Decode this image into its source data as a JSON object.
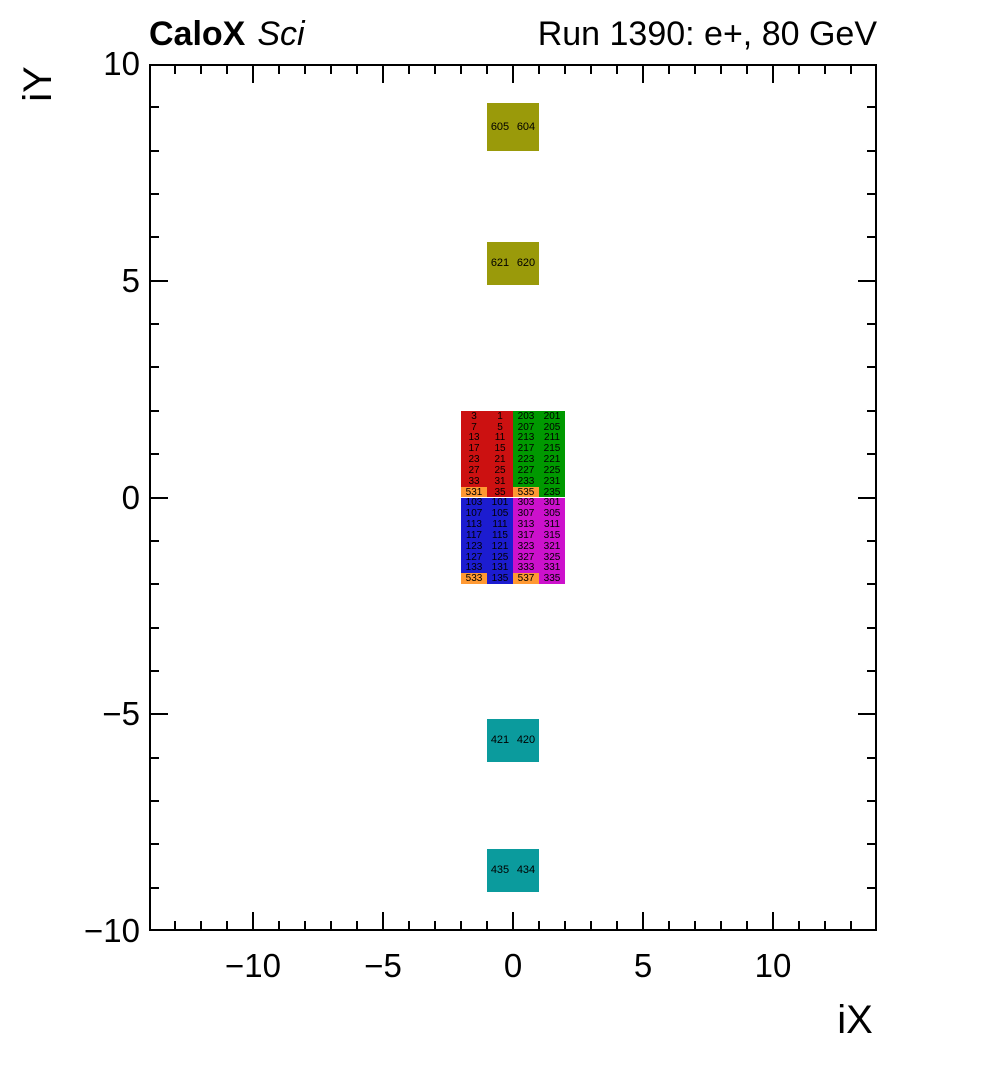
{
  "header": {
    "left_bold": "CaloX",
    "left_italic": "Sci",
    "right": "Run 1390: e+, 80 GeV"
  },
  "chart_data": {
    "type": "heatmap",
    "title": "CaloX Sci — Run 1390: e+, 80 GeV",
    "x_axis": {
      "title": "iX",
      "range": [
        -14,
        14
      ],
      "major_ticks": [
        -10,
        -5,
        0,
        5,
        10
      ],
      "tick_labels": [
        "−10",
        "−5",
        "0",
        "5",
        "10"
      ],
      "minor_step": 1
    },
    "y_axis": {
      "title": "iY",
      "range": [
        -10,
        10
      ],
      "major_ticks": [
        10,
        5,
        0,
        -5,
        -10
      ],
      "tick_labels": [
        "10",
        "5",
        "0",
        "−5",
        "−10"
      ],
      "minor_step": 1
    },
    "colors": {
      "red": "#cc1111",
      "green": "#009900",
      "blue": "#1c1cd0",
      "magenta": "#cc11cc",
      "orange": "#ff9933",
      "olive": "#9a9a0a",
      "teal": "#0b9b9d",
      "text": "#000000",
      "frame": "#000000"
    },
    "blocks": [
      {
        "name": "upper-left-red",
        "color_key": "red",
        "x": [
          -2,
          0
        ],
        "y": [
          0,
          2
        ],
        "row_height": 0.25,
        "columns": [
          [
            "3",
            "7",
            "13",
            "17",
            "23",
            "27",
            "33",
            "531"
          ],
          [
            "1",
            "5",
            "11",
            "15",
            "21",
            "25",
            "31",
            "35"
          ]
        ],
        "orange_cells": [
          [
            0,
            7
          ]
        ]
      },
      {
        "name": "upper-right-green",
        "color_key": "green",
        "x": [
          0,
          2
        ],
        "y": [
          0,
          2
        ],
        "row_height": 0.25,
        "columns": [
          [
            "203",
            "207",
            "213",
            "217",
            "223",
            "227",
            "233",
            "535"
          ],
          [
            "201",
            "205",
            "211",
            "215",
            "221",
            "225",
            "231",
            "235"
          ]
        ],
        "orange_cells": [
          [
            0,
            7
          ]
        ]
      },
      {
        "name": "lower-left-blue",
        "color_key": "blue",
        "x": [
          -2,
          0
        ],
        "y": [
          -2,
          0
        ],
        "row_height": 0.25,
        "columns": [
          [
            "103",
            "107",
            "113",
            "117",
            "123",
            "127",
            "133",
            "533"
          ],
          [
            "101",
            "105",
            "111",
            "115",
            "121",
            "125",
            "131",
            "135"
          ]
        ],
        "orange_cells": [
          [
            0,
            7
          ]
        ]
      },
      {
        "name": "lower-right-magenta",
        "color_key": "magenta",
        "x": [
          0,
          2
        ],
        "y": [
          -2,
          0
        ],
        "row_height": 0.25,
        "columns": [
          [
            "303",
            "307",
            "313",
            "317",
            "323",
            "327",
            "333",
            "537"
          ],
          [
            "301",
            "305",
            "311",
            "315",
            "321",
            "325",
            "331",
            "335"
          ]
        ],
        "orange_cells": [
          [
            0,
            7
          ]
        ]
      }
    ],
    "isolated_cells": [
      {
        "color_key": "olive",
        "x": [
          -1,
          1
        ],
        "y": [
          8.0,
          9.1
        ],
        "labels": [
          "605",
          "604"
        ]
      },
      {
        "color_key": "olive",
        "x": [
          -1,
          1
        ],
        "y": [
          4.9,
          5.9
        ],
        "labels": [
          "621",
          "620"
        ]
      },
      {
        "color_key": "teal",
        "x": [
          -1,
          1
        ],
        "y": [
          -6.1,
          -5.1
        ],
        "labels": [
          "421",
          "420"
        ]
      },
      {
        "color_key": "teal",
        "x": [
          -1,
          1
        ],
        "y": [
          -9.1,
          -8.1
        ],
        "labels": [
          "435",
          "434"
        ]
      }
    ]
  }
}
